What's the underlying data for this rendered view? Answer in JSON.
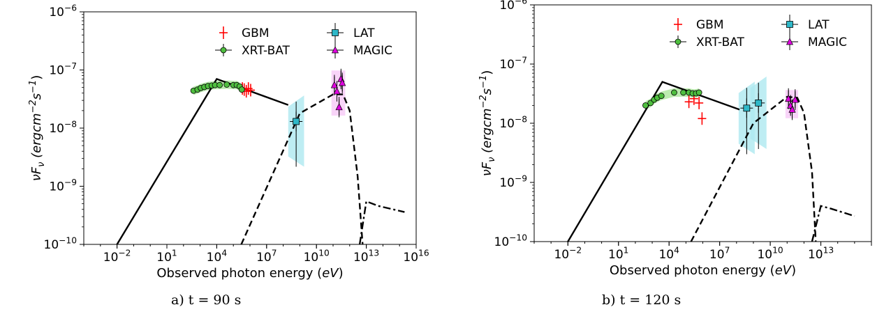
{
  "captions": [
    "a) t = 90 s",
    "b) t = 120 s"
  ],
  "chart_data": [
    {
      "type": "scatter",
      "title": "",
      "xlabel": "Observed photon energy (eV)",
      "ylabel": "νF_ν (ergcm⁻²s⁻¹)",
      "xscale": "log",
      "yscale": "log",
      "xlim": [
        0.0001,
        1e+16
      ],
      "ylim": [
        1e-10,
        1e-06
      ],
      "xticks": [
        "10⁻²",
        "10¹",
        "10⁴",
        "10⁷",
        "10¹⁰",
        "10¹³",
        "10¹⁶"
      ],
      "yticks": [
        "10⁻¹⁰",
        "10⁻⁹",
        "10⁻⁸",
        "10⁻⁷",
        "10⁻⁶"
      ],
      "legend_position": "top-right",
      "series": [
        {
          "name": "GBM",
          "color": "#ff0000",
          "marker": "plus",
          "points": [
            [
              350000.0,
              4.8e-08
            ],
            [
              450000.0,
              4.6e-08
            ],
            [
              600000.0,
              4.3e-08
            ],
            [
              800000.0,
              4.8e-08
            ],
            [
              1100000.0,
              4.5e-08
            ]
          ]
        },
        {
          "name": "XRT-BAT",
          "color": "#4fbf3f",
          "marker": "circle",
          "points": [
            [
              400,
              4.4e-08
            ],
            [
              700,
              4.6e-08
            ],
            [
              1100,
              4.9e-08
            ],
            [
              1800,
              5.1e-08
            ],
            [
              3000,
              5.3e-08
            ],
            [
              5000,
              5.4e-08
            ],
            [
              8000,
              5.5e-08
            ],
            [
              15000.0,
              5.5e-08
            ],
            [
              40000.0,
              5.6e-08
            ],
            [
              100000.0,
              5.5e-08
            ],
            [
              160000.0,
              5.5e-08
            ],
            [
              240000.0,
              5.2e-08
            ],
            [
              320000.0,
              4.6e-08
            ]
          ]
        },
        {
          "name": "LAT",
          "color": "#2fb8c8",
          "marker": "square",
          "points": [
            [
              600000000.0,
              1.3e-08
            ]
          ]
        },
        {
          "name": "MAGIC",
          "color": "#e000e0",
          "marker": "triangle",
          "points": [
            [
              120000000000.0,
              5.5e-08
            ],
            [
              170000000000.0,
              4.3e-08
            ],
            [
              230000000000.0,
              2.3e-08
            ],
            [
              300000000000.0,
              7e-08
            ],
            [
              360000000000.0,
              6e-08
            ]
          ]
        }
      ],
      "model_lines": {
        "solid": [
          [
            0.01,
            1e-10
          ],
          [
            10000.0,
            7e-08
          ],
          [
            200000000.0,
            2.5e-08
          ]
        ],
        "dashed": [
          [
            300000.0,
            1e-10
          ],
          [
            1000000000.0,
            1.8e-08
          ],
          [
            100000000000.0,
            3.8e-08
          ],
          [
            400000000000.0,
            3.8e-08
          ],
          [
            1000000000000.0,
            2e-08
          ],
          [
            3000000000000.0,
            1.5e-09
          ],
          [
            6000000000000.0,
            1e-10
          ]
        ],
        "dashdot": [
          [
            4000000000000.0,
            1e-10
          ],
          [
            10000000000000.0,
            5.5e-10
          ],
          [
            50000000000000.0,
            4.6e-10
          ],
          [
            2000000000000000.0,
            3.6e-10
          ]
        ]
      }
    },
    {
      "type": "scatter",
      "title": "",
      "xlabel": "Observed photon energy (eV)",
      "ylabel": "νF_ν (ergcm⁻²s⁻¹)",
      "xscale": "log",
      "yscale": "log",
      "xlim": [
        0.0001,
        1e+16
      ],
      "ylim": [
        1e-10,
        1e-06
      ],
      "xticks": [
        "10⁻²",
        "10¹",
        "10⁴",
        "10⁷",
        "10¹⁰",
        "10¹³"
      ],
      "yticks": [
        "10⁻¹⁰",
        "10⁻⁹",
        "10⁻⁸",
        "10⁻⁷",
        "10⁻⁶"
      ],
      "legend_position": "top-right",
      "series": [
        {
          "name": "GBM",
          "color": "#ff0000",
          "marker": "plus",
          "points": [
            [
              150000.0,
              2.3e-08
            ],
            [
              300000.0,
              2.6e-08
            ],
            [
              600000.0,
              2.2e-08
            ],
            [
              900000.0,
              1.2e-08
            ]
          ]
        },
        {
          "name": "XRT-BAT",
          "color": "#4fbf3f",
          "marker": "circle",
          "points": [
            [
              400,
              2e-08
            ],
            [
              800,
              2.2e-08
            ],
            [
              1300,
              2.5e-08
            ],
            [
              2000,
              2.7e-08
            ],
            [
              3500,
              2.9e-08
            ],
            [
              20000.0,
              3.3e-08
            ],
            [
              70000.0,
              3.3e-08
            ],
            [
              150000.0,
              3.3e-08
            ],
            [
              250000.0,
              3.2e-08
            ],
            [
              400000.0,
              3.2e-08
            ],
            [
              600000.0,
              3.3e-08
            ]
          ]
        },
        {
          "name": "LAT",
          "color": "#2fb8c8",
          "marker": "square",
          "points": [
            [
              400000000.0,
              1.8e-08
            ],
            [
              2000000000.0,
              2.2e-08
            ]
          ]
        },
        {
          "name": "MAGIC",
          "color": "#e000e0",
          "marker": "triangle",
          "points": [
            [
              120000000000.0,
              2.6e-08
            ],
            [
              160000000000.0,
              2e-08
            ],
            [
              200000000000.0,
              1.7e-08
            ],
            [
              300000000000.0,
              2.5e-08
            ]
          ]
        }
      ],
      "model_lines": {
        "solid": [
          [
            0.01,
            1e-10
          ],
          [
            4000,
            5e-08
          ],
          [
            150000000.0,
            1.7e-08
          ]
        ],
        "dashed": [
          [
            200000.0,
            1e-10
          ],
          [
            1000000000.0,
            1e-08
          ],
          [
            100000000000.0,
            2.8e-08
          ],
          [
            400000000000.0,
            2.7e-08
          ],
          [
            1000000000000.0,
            1.5e-08
          ],
          [
            3000000000000.0,
            1.5e-09
          ],
          [
            5000000000000.0,
            1e-10
          ]
        ],
        "dashdot": [
          [
            3000000000000.0,
            1e-10
          ],
          [
            10000000000000.0,
            4e-10
          ],
          [
            40000000000000.0,
            3.6e-10
          ],
          [
            1000000000000000.0,
            2.7e-10
          ]
        ]
      }
    }
  ]
}
